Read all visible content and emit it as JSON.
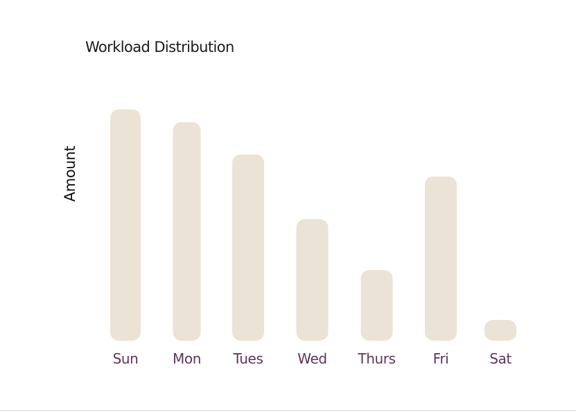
{
  "chart_data": {
    "type": "bar",
    "title": "Workload Distribution",
    "xlabel": "",
    "ylabel": "Amount",
    "categories": [
      "Sun",
      "Mon",
      "Tues",
      "Wed",
      "Thurs",
      "Fri",
      "Sat"
    ],
    "values": [
      100,
      94.5,
      80.5,
      52.5,
      30.5,
      71,
      9
    ],
    "ylim": [
      0,
      100
    ],
    "grid": false,
    "legend": "none",
    "bar_color": "#ebe3d5",
    "label_color": "#5e3559"
  }
}
